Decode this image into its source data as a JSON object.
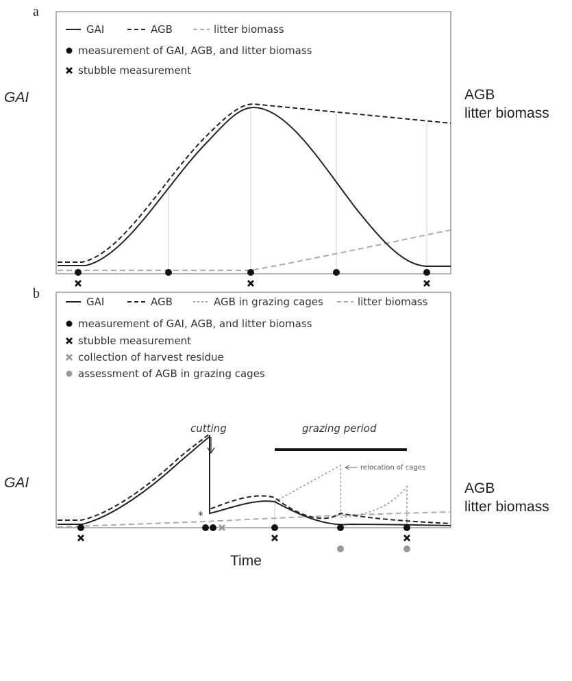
{
  "panels": [
    {
      "letter": "a",
      "legend_lines": [
        {
          "style": "solid",
          "label": "GAI"
        },
        {
          "style": "dashed",
          "label": "AGB"
        },
        {
          "style": "dashed-grey",
          "label": "litter biomass"
        }
      ],
      "legend_markers": [
        {
          "marker": "dot-black",
          "label": "measurement of GAI, AGB, and litter biomass"
        },
        {
          "marker": "cross-black",
          "label": "stubble measurement"
        }
      ],
      "y_label": "GAI",
      "right_labels": [
        "AGB",
        "litter biomass"
      ]
    },
    {
      "letter": "b",
      "legend_lines": [
        {
          "style": "solid",
          "label": "GAI"
        },
        {
          "style": "dashed",
          "label": "AGB"
        },
        {
          "style": "dotted-grey",
          "label": "AGB in grazing cages"
        },
        {
          "style": "dashed-grey",
          "label": "litter biomass"
        }
      ],
      "legend_markers": [
        {
          "marker": "dot-black",
          "label": "measurement of GAI, AGB, and litter biomass"
        },
        {
          "marker": "cross-black",
          "label": "stubble measurement"
        },
        {
          "marker": "cross-grey",
          "label": "collection of harvest residue"
        },
        {
          "marker": "dot-grey",
          "label": "assessment of AGB in grazing cages"
        }
      ],
      "y_label": "GAI",
      "right_labels": [
        "AGB",
        "litter biomass"
      ],
      "annotations": {
        "cutting": "cutting",
        "grazing": "grazing period",
        "relocation": "relocation of cages",
        "asterisk": "*"
      }
    }
  ],
  "x_label": "Time",
  "colors": {
    "ink": "#222222",
    "grey": "#9a9a9a",
    "light": "#cfcfcf"
  }
}
